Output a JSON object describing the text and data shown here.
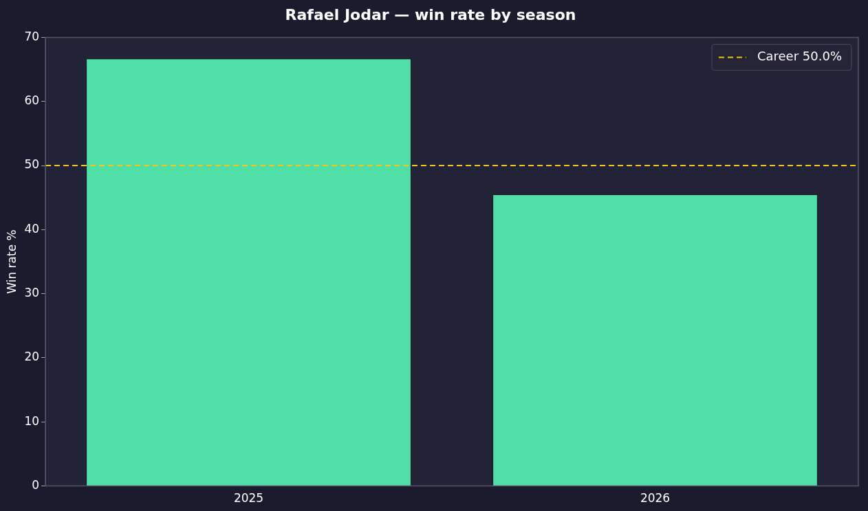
{
  "chart_data": {
    "type": "bar",
    "title": "Rafael Jodar — win rate by season",
    "ylabel": "Win rate %",
    "categories": [
      "2025",
      "2026"
    ],
    "values": [
      66.7,
      45.5
    ],
    "color": "#4fdea6",
    "ylim": [
      0,
      70
    ],
    "yticks": [
      0,
      10,
      20,
      30,
      40,
      50,
      60,
      70
    ],
    "grid": false,
    "legend": "top right",
    "ref_lines": [
      {
        "axis": "y",
        "value": 50,
        "label": "Career 50.0%",
        "color": "#f5c518",
        "line_style": "dashed"
      }
    ]
  }
}
